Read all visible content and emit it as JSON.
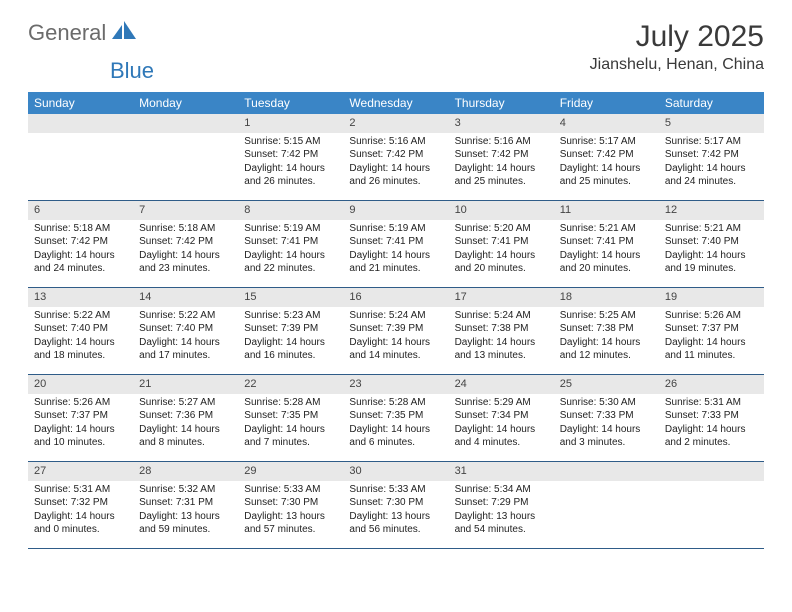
{
  "brand": {
    "part1": "General",
    "part2": "Blue"
  },
  "title": "July 2025",
  "location": "Jianshelu, Henan, China",
  "colors": {
    "header_bg": "#3a85c6",
    "header_text": "#ffffff",
    "dayband_bg": "#e8e8e8",
    "row_border": "#2f5c88",
    "brand_gray": "#6b6b6b",
    "brand_blue": "#2f78b8"
  },
  "day_headers": [
    "Sunday",
    "Monday",
    "Tuesday",
    "Wednesday",
    "Thursday",
    "Friday",
    "Saturday"
  ],
  "weeks": [
    [
      null,
      null,
      {
        "n": "1",
        "sr": "5:15 AM",
        "ss": "7:42 PM",
        "dl": "14 hours and 26 minutes."
      },
      {
        "n": "2",
        "sr": "5:16 AM",
        "ss": "7:42 PM",
        "dl": "14 hours and 26 minutes."
      },
      {
        "n": "3",
        "sr": "5:16 AM",
        "ss": "7:42 PM",
        "dl": "14 hours and 25 minutes."
      },
      {
        "n": "4",
        "sr": "5:17 AM",
        "ss": "7:42 PM",
        "dl": "14 hours and 25 minutes."
      },
      {
        "n": "5",
        "sr": "5:17 AM",
        "ss": "7:42 PM",
        "dl": "14 hours and 24 minutes."
      }
    ],
    [
      {
        "n": "6",
        "sr": "5:18 AM",
        "ss": "7:42 PM",
        "dl": "14 hours and 24 minutes."
      },
      {
        "n": "7",
        "sr": "5:18 AM",
        "ss": "7:42 PM",
        "dl": "14 hours and 23 minutes."
      },
      {
        "n": "8",
        "sr": "5:19 AM",
        "ss": "7:41 PM",
        "dl": "14 hours and 22 minutes."
      },
      {
        "n": "9",
        "sr": "5:19 AM",
        "ss": "7:41 PM",
        "dl": "14 hours and 21 minutes."
      },
      {
        "n": "10",
        "sr": "5:20 AM",
        "ss": "7:41 PM",
        "dl": "14 hours and 20 minutes."
      },
      {
        "n": "11",
        "sr": "5:21 AM",
        "ss": "7:41 PM",
        "dl": "14 hours and 20 minutes."
      },
      {
        "n": "12",
        "sr": "5:21 AM",
        "ss": "7:40 PM",
        "dl": "14 hours and 19 minutes."
      }
    ],
    [
      {
        "n": "13",
        "sr": "5:22 AM",
        "ss": "7:40 PM",
        "dl": "14 hours and 18 minutes."
      },
      {
        "n": "14",
        "sr": "5:22 AM",
        "ss": "7:40 PM",
        "dl": "14 hours and 17 minutes."
      },
      {
        "n": "15",
        "sr": "5:23 AM",
        "ss": "7:39 PM",
        "dl": "14 hours and 16 minutes."
      },
      {
        "n": "16",
        "sr": "5:24 AM",
        "ss": "7:39 PM",
        "dl": "14 hours and 14 minutes."
      },
      {
        "n": "17",
        "sr": "5:24 AM",
        "ss": "7:38 PM",
        "dl": "14 hours and 13 minutes."
      },
      {
        "n": "18",
        "sr": "5:25 AM",
        "ss": "7:38 PM",
        "dl": "14 hours and 12 minutes."
      },
      {
        "n": "19",
        "sr": "5:26 AM",
        "ss": "7:37 PM",
        "dl": "14 hours and 11 minutes."
      }
    ],
    [
      {
        "n": "20",
        "sr": "5:26 AM",
        "ss": "7:37 PM",
        "dl": "14 hours and 10 minutes."
      },
      {
        "n": "21",
        "sr": "5:27 AM",
        "ss": "7:36 PM",
        "dl": "14 hours and 8 minutes."
      },
      {
        "n": "22",
        "sr": "5:28 AM",
        "ss": "7:35 PM",
        "dl": "14 hours and 7 minutes."
      },
      {
        "n": "23",
        "sr": "5:28 AM",
        "ss": "7:35 PM",
        "dl": "14 hours and 6 minutes."
      },
      {
        "n": "24",
        "sr": "5:29 AM",
        "ss": "7:34 PM",
        "dl": "14 hours and 4 minutes."
      },
      {
        "n": "25",
        "sr": "5:30 AM",
        "ss": "7:33 PM",
        "dl": "14 hours and 3 minutes."
      },
      {
        "n": "26",
        "sr": "5:31 AM",
        "ss": "7:33 PM",
        "dl": "14 hours and 2 minutes."
      }
    ],
    [
      {
        "n": "27",
        "sr": "5:31 AM",
        "ss": "7:32 PM",
        "dl": "14 hours and 0 minutes."
      },
      {
        "n": "28",
        "sr": "5:32 AM",
        "ss": "7:31 PM",
        "dl": "13 hours and 59 minutes."
      },
      {
        "n": "29",
        "sr": "5:33 AM",
        "ss": "7:30 PM",
        "dl": "13 hours and 57 minutes."
      },
      {
        "n": "30",
        "sr": "5:33 AM",
        "ss": "7:30 PM",
        "dl": "13 hours and 56 minutes."
      },
      {
        "n": "31",
        "sr": "5:34 AM",
        "ss": "7:29 PM",
        "dl": "13 hours and 54 minutes."
      },
      null,
      null
    ]
  ],
  "labels": {
    "sunrise": "Sunrise:",
    "sunset": "Sunset:",
    "daylight": "Daylight:"
  }
}
